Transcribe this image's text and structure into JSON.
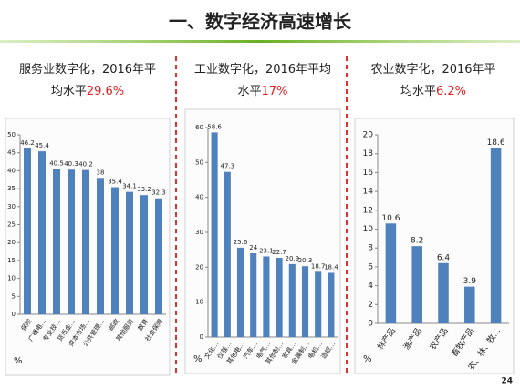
{
  "title": "一、数字经济高速增长",
  "page_number": "24",
  "chart_data": [
    {
      "type": "bar",
      "title_lines": [
        "服务业数字化，2016年平",
        "均水平"
      ],
      "title_highlight": "29.6%",
      "categories": [
        "保险",
        "广播电…",
        "专业技…",
        "货币金…",
        "资本市场…",
        "公共管理…",
        "邮政",
        "其他服务",
        "教育",
        "社会保障"
      ],
      "values": [
        46.2,
        45.4,
        40.5,
        40.3,
        40.2,
        38,
        35.4,
        34.1,
        33.2,
        32.3
      ],
      "color": "#4f81bd",
      "ylim": [
        0,
        50
      ],
      "yticks": [
        0,
        5,
        10,
        15,
        20,
        25,
        30,
        35,
        40,
        45,
        50
      ],
      "y_label": "%"
    },
    {
      "type": "bar",
      "title_lines": [
        "工业数字化，2016年平均",
        "水平"
      ],
      "title_highlight": "17%",
      "categories": [
        "文化…",
        "仪器…",
        "其他电…",
        "汽车…",
        "电气…",
        "其他制…",
        "家具…",
        "金属制…",
        "电机…",
        "造纸…"
      ],
      "values": [
        58.6,
        47.3,
        25.6,
        24,
        23.1,
        22.7,
        20.9,
        20.3,
        18.7,
        18.4
      ],
      "color": "#4f81bd",
      "ylim": [
        0,
        60
      ],
      "yticks": [
        0,
        10,
        20,
        30,
        40,
        50,
        60
      ],
      "y_label": "%"
    },
    {
      "type": "bar",
      "title_lines": [
        "农业数字化，2016年平",
        "均水平"
      ],
      "title_highlight": "6.2%",
      "categories": [
        "林产品",
        "渔产品",
        "农产品",
        "畜牧产品",
        "农、林、牧…"
      ],
      "values": [
        10.6,
        8.2,
        6.4,
        3.9,
        18.6
      ],
      "color": "#4f81bd",
      "ylim": [
        0,
        20
      ],
      "yticks": [
        0,
        2,
        4,
        6,
        8,
        10,
        12,
        14,
        16,
        18,
        20
      ],
      "y_label": "%"
    }
  ]
}
